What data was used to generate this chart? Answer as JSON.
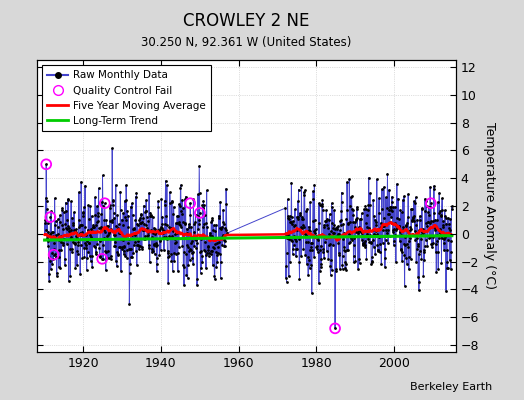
{
  "title": "CROWLEY 2 NE",
  "subtitle": "30.250 N, 92.361 W (United States)",
  "ylabel": "Temperature Anomaly (°C)",
  "attribution": "Berkeley Earth",
  "ylim": [
    -8.5,
    12.5
  ],
  "yticks": [
    -8,
    -6,
    -4,
    -2,
    0,
    2,
    4,
    6,
    8,
    10,
    12
  ],
  "xlim": [
    1908,
    2016
  ],
  "xticks": [
    1920,
    1940,
    1960,
    1980,
    2000
  ],
  "year_start": 1910,
  "year_end": 2014,
  "gap_start": 1957,
  "gap_end": 1971,
  "data_color": "#4444CC",
  "dot_color": "#000000",
  "qc_color": "#FF00FF",
  "ma_color": "#FF0000",
  "trend_color": "#00CC00",
  "bg_color": "#D8D8D8",
  "plot_bg": "#FFFFFF",
  "grid_color": "#C0C0C0",
  "seed": 42,
  "noise_std": 1.8
}
